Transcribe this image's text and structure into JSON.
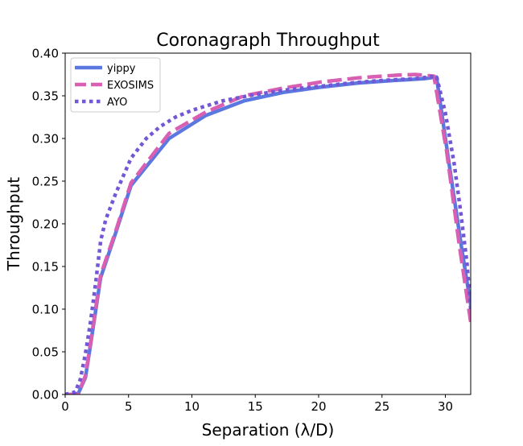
{
  "chart_data": {
    "type": "line",
    "title": "Coronagraph Throughput",
    "xlabel": "Separation (λ/D)",
    "ylabel": "Throughput",
    "xlim": [
      0,
      32
    ],
    "ylim": [
      0,
      0.4
    ],
    "xticks": [
      0,
      5,
      10,
      15,
      20,
      25,
      30
    ],
    "yticks": [
      0.0,
      0.05,
      0.1,
      0.15,
      0.2,
      0.25,
      0.3,
      0.35,
      0.4
    ],
    "xtick_labels": [
      "0",
      "5",
      "10",
      "15",
      "20",
      "25",
      "30"
    ],
    "ytick_labels": [
      "0.00",
      "0.05",
      "0.10",
      "0.15",
      "0.20",
      "0.25",
      "0.30",
      "0.35",
      "0.40"
    ],
    "grid": false,
    "legend_position": "top-left",
    "series": [
      {
        "name": "yippy",
        "color": "#5b78e0",
        "style": "solid",
        "x": [
          0,
          1.0,
          1.6,
          2.0,
          2.8,
          4.0,
          5.2,
          8.2,
          11.1,
          14.1,
          17.2,
          20.1,
          23.1,
          26.0,
          28.3,
          29.3,
          30.3,
          31.3,
          32.0
        ],
        "y": [
          0.0,
          0.0,
          0.02,
          0.058,
          0.137,
          0.19,
          0.245,
          0.3,
          0.327,
          0.344,
          0.354,
          0.36,
          0.365,
          0.368,
          0.37,
          0.372,
          0.27,
          0.17,
          0.105
        ]
      },
      {
        "name": "EXOSIMS",
        "color": "#d95fb3",
        "style": "dashed",
        "x": [
          0,
          1.0,
          1.6,
          2.0,
          2.8,
          4.0,
          5.2,
          8.2,
          11.1,
          14.1,
          17.2,
          20.1,
          23.1,
          26.0,
          27.6,
          29.1,
          30.1,
          31.1,
          32.0
        ],
        "y": [
          0.0,
          0.0,
          0.022,
          0.06,
          0.14,
          0.192,
          0.248,
          0.306,
          0.331,
          0.35,
          0.359,
          0.366,
          0.371,
          0.374,
          0.375,
          0.373,
          0.285,
          0.175,
          0.085
        ]
      },
      {
        "name": "AYO",
        "color": "#7357d6",
        "style": "dotted",
        "x": [
          0,
          0.8,
          1.2,
          1.6,
          2.0,
          2.4,
          2.8,
          3.2,
          4.0,
          5.2,
          6.4,
          7.5,
          8.7,
          10.0,
          12.4,
          14.8,
          17.5,
          20.0,
          22.5,
          25.0,
          27.5,
          29.3,
          30.0,
          30.7,
          31.2,
          31.7,
          32.0
        ],
        "y": [
          0.0,
          0.003,
          0.018,
          0.048,
          0.085,
          0.13,
          0.18,
          0.205,
          0.236,
          0.277,
          0.3,
          0.314,
          0.325,
          0.333,
          0.344,
          0.351,
          0.357,
          0.361,
          0.365,
          0.368,
          0.37,
          0.373,
          0.33,
          0.27,
          0.215,
          0.155,
          0.1
        ]
      }
    ]
  }
}
